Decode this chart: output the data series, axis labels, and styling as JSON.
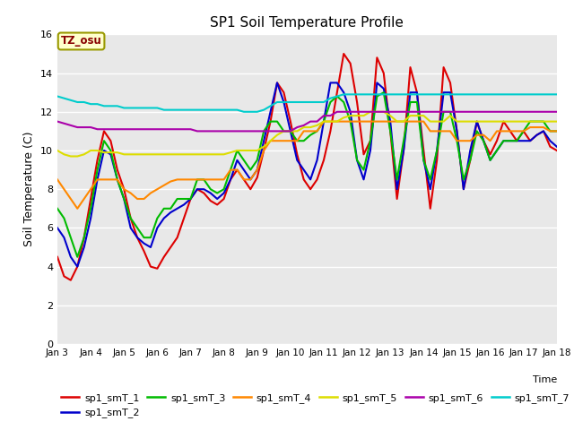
{
  "title": "SP1 Soil Temperature Profile",
  "xlabel": "Time",
  "ylabel": "Soil Temperature (C)",
  "ylim": [
    0,
    16
  ],
  "yticks": [
    0,
    2,
    4,
    6,
    8,
    10,
    12,
    14,
    16
  ],
  "annotation": "TZ_osu",
  "annotation_color": "#880000",
  "annotation_bg": "#ffffcc",
  "annotation_border": "#999900",
  "plot_bg": "#e8e8e8",
  "below_plot_bg": "#ffffff",
  "series": {
    "sp1_smT_1": {
      "color": "#dd0000",
      "lw": 1.5,
      "x": [
        3,
        3.2,
        3.4,
        3.6,
        3.8,
        4.0,
        4.2,
        4.4,
        4.6,
        4.8,
        5.0,
        5.2,
        5.4,
        5.6,
        5.8,
        6.0,
        6.2,
        6.4,
        6.6,
        6.8,
        7.0,
        7.2,
        7.4,
        7.6,
        7.8,
        8.0,
        8.2,
        8.4,
        8.6,
        8.8,
        9.0,
        9.2,
        9.4,
        9.6,
        9.8,
        10.0,
        10.2,
        10.4,
        10.6,
        10.8,
        11.0,
        11.2,
        11.4,
        11.6,
        11.8,
        12.0,
        12.2,
        12.4,
        12.6,
        12.8,
        13.0,
        13.2,
        13.4,
        13.6,
        13.8,
        14.0,
        14.2,
        14.4,
        14.6,
        14.8,
        15.0,
        15.2,
        15.4,
        15.6,
        15.8,
        16.0,
        16.2,
        16.4,
        16.6,
        16.8,
        17.0,
        17.2,
        17.4,
        17.6,
        17.8,
        18.0
      ],
      "y": [
        4.5,
        3.5,
        3.3,
        4.0,
        5.5,
        7.5,
        9.5,
        11.0,
        10.5,
        9.0,
        8.0,
        6.5,
        5.5,
        4.8,
        4.0,
        3.9,
        4.5,
        5.0,
        5.5,
        6.5,
        7.5,
        8.0,
        7.8,
        7.4,
        7.2,
        7.5,
        8.5,
        9.0,
        8.5,
        8.0,
        8.6,
        10.0,
        11.5,
        13.5,
        13.0,
        11.5,
        9.8,
        8.5,
        8.0,
        8.5,
        9.5,
        11.0,
        13.0,
        15.0,
        14.5,
        12.5,
        9.8,
        10.5,
        14.8,
        14.0,
        11.0,
        7.5,
        10.0,
        14.3,
        13.0,
        10.0,
        7.0,
        9.5,
        14.3,
        13.5,
        11.0,
        8.0,
        9.5,
        11.5,
        10.5,
        9.8,
        10.5,
        11.5,
        11.0,
        10.5,
        11.0,
        10.5,
        10.8,
        11.0,
        10.2,
        10.0
      ]
    },
    "sp1_smT_2": {
      "color": "#0000cc",
      "lw": 1.5,
      "x": [
        3,
        3.2,
        3.4,
        3.6,
        3.8,
        4.0,
        4.2,
        4.4,
        4.6,
        4.8,
        5.0,
        5.2,
        5.4,
        5.6,
        5.8,
        6.0,
        6.2,
        6.4,
        6.6,
        6.8,
        7.0,
        7.2,
        7.4,
        7.6,
        7.8,
        8.0,
        8.2,
        8.4,
        8.6,
        8.8,
        9.0,
        9.2,
        9.4,
        9.6,
        9.8,
        10.0,
        10.2,
        10.4,
        10.6,
        10.8,
        11.0,
        11.2,
        11.4,
        11.6,
        11.8,
        12.0,
        12.2,
        12.4,
        12.6,
        12.8,
        13.0,
        13.2,
        13.4,
        13.6,
        13.8,
        14.0,
        14.2,
        14.4,
        14.6,
        14.8,
        15.0,
        15.2,
        15.4,
        15.6,
        15.8,
        16.0,
        16.2,
        16.4,
        16.6,
        16.8,
        17.0,
        17.2,
        17.4,
        17.6,
        17.8,
        18.0
      ],
      "y": [
        6.0,
        5.5,
        4.5,
        4.0,
        5.0,
        6.5,
        8.5,
        10.0,
        9.8,
        8.5,
        7.5,
        6.0,
        5.5,
        5.2,
        5.0,
        6.0,
        6.5,
        6.8,
        7.0,
        7.2,
        7.5,
        8.0,
        8.0,
        7.8,
        7.5,
        7.8,
        8.5,
        9.5,
        9.0,
        8.5,
        9.0,
        10.5,
        12.0,
        13.5,
        12.5,
        11.0,
        9.5,
        9.0,
        8.5,
        9.5,
        11.5,
        13.5,
        13.5,
        13.0,
        12.0,
        9.5,
        8.5,
        10.0,
        13.5,
        13.2,
        11.5,
        8.0,
        10.0,
        13.0,
        13.0,
        9.5,
        8.0,
        10.0,
        13.0,
        13.0,
        11.0,
        8.0,
        10.0,
        11.5,
        10.5,
        9.5,
        10.0,
        10.5,
        10.5,
        10.5,
        10.5,
        10.5,
        10.8,
        11.0,
        10.5,
        10.2
      ]
    },
    "sp1_smT_3": {
      "color": "#00bb00",
      "lw": 1.5,
      "x": [
        3,
        3.2,
        3.4,
        3.6,
        3.8,
        4.0,
        4.2,
        4.4,
        4.6,
        4.8,
        5.0,
        5.2,
        5.4,
        5.6,
        5.8,
        6.0,
        6.2,
        6.4,
        6.6,
        6.8,
        7.0,
        7.2,
        7.4,
        7.6,
        7.8,
        8.0,
        8.2,
        8.4,
        8.6,
        8.8,
        9.0,
        9.2,
        9.4,
        9.6,
        9.8,
        10.0,
        10.2,
        10.4,
        10.6,
        10.8,
        11.0,
        11.2,
        11.4,
        11.6,
        11.8,
        12.0,
        12.2,
        12.4,
        12.6,
        12.8,
        13.0,
        13.2,
        13.4,
        13.6,
        13.8,
        14.0,
        14.2,
        14.4,
        14.6,
        14.8,
        15.0,
        15.2,
        15.4,
        15.6,
        15.8,
        16.0,
        16.2,
        16.4,
        16.6,
        16.8,
        17.0,
        17.2,
        17.4,
        17.6,
        17.8,
        18.0
      ],
      "y": [
        7.0,
        6.5,
        5.5,
        4.5,
        5.5,
        7.0,
        9.0,
        10.5,
        10.0,
        8.5,
        7.5,
        6.5,
        6.0,
        5.5,
        5.5,
        6.5,
        7.0,
        7.0,
        7.5,
        7.5,
        7.5,
        8.5,
        8.5,
        8.0,
        7.8,
        8.0,
        9.0,
        10.0,
        9.5,
        9.0,
        9.5,
        11.0,
        11.5,
        11.5,
        11.0,
        11.0,
        10.5,
        10.5,
        10.8,
        11.0,
        11.5,
        12.5,
        12.8,
        12.5,
        11.5,
        9.5,
        9.0,
        10.5,
        12.8,
        13.0,
        11.0,
        8.5,
        10.5,
        12.5,
        12.5,
        9.5,
        8.5,
        10.0,
        12.0,
        12.0,
        10.5,
        8.5,
        9.5,
        11.0,
        10.5,
        9.5,
        10.0,
        10.5,
        10.5,
        10.5,
        11.0,
        11.5,
        11.5,
        11.5,
        11.0,
        11.0
      ]
    },
    "sp1_smT_4": {
      "color": "#ff8800",
      "lw": 1.5,
      "x": [
        3,
        3.2,
        3.4,
        3.6,
        3.8,
        4.0,
        4.2,
        4.4,
        4.6,
        4.8,
        5.0,
        5.2,
        5.4,
        5.6,
        5.8,
        6.0,
        6.2,
        6.4,
        6.6,
        6.8,
        7.0,
        7.2,
        7.4,
        7.6,
        7.8,
        8.0,
        8.2,
        8.4,
        8.6,
        8.8,
        9.0,
        9.2,
        9.4,
        9.6,
        9.8,
        10.0,
        10.2,
        10.4,
        10.6,
        10.8,
        11.0,
        11.2,
        11.4,
        11.6,
        11.8,
        12.0,
        12.2,
        12.4,
        12.6,
        12.8,
        13.0,
        13.2,
        13.4,
        13.6,
        13.8,
        14.0,
        14.2,
        14.4,
        14.6,
        14.8,
        15.0,
        15.2,
        15.4,
        15.6,
        15.8,
        16.0,
        16.2,
        16.4,
        16.6,
        16.8,
        17.0,
        17.2,
        17.4,
        17.6,
        17.8,
        18.0
      ],
      "y": [
        8.5,
        8.0,
        7.5,
        7.0,
        7.5,
        8.0,
        8.5,
        8.5,
        8.5,
        8.5,
        8.0,
        7.8,
        7.5,
        7.5,
        7.8,
        8.0,
        8.2,
        8.4,
        8.5,
        8.5,
        8.5,
        8.5,
        8.5,
        8.5,
        8.5,
        8.5,
        9.0,
        9.0,
        8.5,
        8.5,
        9.0,
        10.0,
        10.5,
        10.5,
        10.5,
        10.5,
        10.5,
        11.0,
        11.0,
        11.0,
        11.5,
        11.5,
        11.5,
        11.5,
        11.5,
        11.5,
        11.5,
        11.5,
        11.5,
        11.5,
        11.5,
        11.5,
        11.5,
        11.5,
        11.5,
        11.5,
        11.0,
        11.0,
        11.0,
        11.0,
        10.5,
        10.5,
        10.5,
        10.8,
        10.8,
        10.5,
        11.0,
        11.0,
        11.0,
        11.0,
        11.0,
        11.2,
        11.2,
        11.2,
        11.0,
        11.0
      ]
    },
    "sp1_smT_5": {
      "color": "#dddd00",
      "lw": 1.5,
      "x": [
        3,
        3.2,
        3.4,
        3.6,
        3.8,
        4.0,
        4.2,
        4.4,
        4.6,
        4.8,
        5.0,
        5.2,
        5.4,
        5.6,
        5.8,
        6.0,
        6.2,
        6.4,
        6.6,
        6.8,
        7.0,
        7.2,
        7.4,
        7.6,
        7.8,
        8.0,
        8.2,
        8.4,
        8.6,
        8.8,
        9.0,
        9.2,
        9.4,
        9.6,
        9.8,
        10.0,
        10.2,
        10.4,
        10.6,
        10.8,
        11.0,
        11.2,
        11.4,
        11.6,
        11.8,
        12.0,
        12.2,
        12.4,
        12.6,
        12.8,
        13.0,
        13.2,
        13.4,
        13.6,
        13.8,
        14.0,
        14.2,
        14.4,
        14.6,
        14.8,
        15.0,
        15.2,
        15.4,
        15.6,
        15.8,
        16.0,
        16.2,
        16.4,
        16.6,
        16.8,
        17.0,
        17.2,
        17.4,
        17.6,
        17.8,
        18.0
      ],
      "y": [
        10.0,
        9.8,
        9.7,
        9.7,
        9.8,
        10.0,
        10.0,
        9.9,
        9.9,
        9.9,
        9.8,
        9.8,
        9.8,
        9.8,
        9.8,
        9.8,
        9.8,
        9.8,
        9.8,
        9.8,
        9.8,
        9.8,
        9.8,
        9.8,
        9.8,
        9.8,
        9.9,
        10.0,
        10.0,
        10.0,
        10.0,
        10.2,
        10.5,
        10.8,
        11.0,
        11.0,
        11.0,
        11.2,
        11.2,
        11.3,
        11.5,
        11.5,
        11.5,
        11.7,
        11.8,
        11.8,
        11.8,
        12.0,
        12.0,
        12.0,
        11.8,
        11.5,
        11.5,
        11.8,
        11.8,
        11.8,
        11.5,
        11.5,
        11.5,
        11.8,
        11.5,
        11.5,
        11.5,
        11.5,
        11.5,
        11.5,
        11.5,
        11.5,
        11.5,
        11.5,
        11.5,
        11.5,
        11.5,
        11.5,
        11.5,
        11.5
      ]
    },
    "sp1_smT_6": {
      "color": "#aa00aa",
      "lw": 1.5,
      "x": [
        3,
        3.2,
        3.4,
        3.6,
        3.8,
        4.0,
        4.2,
        4.4,
        4.6,
        4.8,
        5.0,
        5.2,
        5.4,
        5.6,
        5.8,
        6.0,
        6.2,
        6.4,
        6.6,
        6.8,
        7.0,
        7.2,
        7.4,
        7.6,
        7.8,
        8.0,
        8.2,
        8.4,
        8.6,
        8.8,
        9.0,
        9.2,
        9.4,
        9.6,
        9.8,
        10.0,
        10.2,
        10.4,
        10.6,
        10.8,
        11.0,
        11.2,
        11.4,
        11.6,
        11.8,
        12.0,
        12.2,
        12.4,
        12.6,
        12.8,
        13.0,
        13.2,
        13.4,
        13.6,
        13.8,
        14.0,
        14.2,
        14.4,
        14.6,
        14.8,
        15.0,
        15.2,
        15.4,
        15.6,
        15.8,
        16.0,
        16.2,
        16.4,
        16.6,
        16.8,
        17.0,
        17.2,
        17.4,
        17.6,
        17.8,
        18.0
      ],
      "y": [
        11.5,
        11.4,
        11.3,
        11.2,
        11.2,
        11.2,
        11.1,
        11.1,
        11.1,
        11.1,
        11.1,
        11.1,
        11.1,
        11.1,
        11.1,
        11.1,
        11.1,
        11.1,
        11.1,
        11.1,
        11.1,
        11.0,
        11.0,
        11.0,
        11.0,
        11.0,
        11.0,
        11.0,
        11.0,
        11.0,
        11.0,
        11.0,
        11.0,
        11.0,
        11.0,
        11.0,
        11.2,
        11.3,
        11.5,
        11.5,
        11.8,
        11.8,
        12.0,
        12.0,
        12.0,
        12.0,
        12.0,
        12.0,
        12.0,
        12.0,
        12.0,
        12.0,
        12.0,
        12.0,
        12.0,
        12.0,
        12.0,
        12.0,
        12.0,
        12.0,
        12.0,
        12.0,
        12.0,
        12.0,
        12.0,
        12.0,
        12.0,
        12.0,
        12.0,
        12.0,
        12.0,
        12.0,
        12.0,
        12.0,
        12.0,
        12.0
      ]
    },
    "sp1_smT_7": {
      "color": "#00cccc",
      "lw": 1.5,
      "x": [
        3,
        3.2,
        3.4,
        3.6,
        3.8,
        4.0,
        4.2,
        4.4,
        4.6,
        4.8,
        5.0,
        5.2,
        5.4,
        5.6,
        5.8,
        6.0,
        6.2,
        6.4,
        6.6,
        6.8,
        7.0,
        7.2,
        7.4,
        7.6,
        7.8,
        8.0,
        8.2,
        8.4,
        8.6,
        8.8,
        9.0,
        9.2,
        9.4,
        9.6,
        9.8,
        10.0,
        10.2,
        10.4,
        10.6,
        10.8,
        11.0,
        11.2,
        11.4,
        11.6,
        11.8,
        12.0,
        12.2,
        12.4,
        12.6,
        12.8,
        13.0,
        13.2,
        13.4,
        13.6,
        13.8,
        14.0,
        14.2,
        14.4,
        14.6,
        14.8,
        15.0,
        15.2,
        15.4,
        15.6,
        15.8,
        16.0,
        16.2,
        16.4,
        16.6,
        16.8,
        17.0,
        17.2,
        17.4,
        17.6,
        17.8,
        18.0
      ],
      "y": [
        12.8,
        12.7,
        12.6,
        12.5,
        12.5,
        12.4,
        12.4,
        12.3,
        12.3,
        12.3,
        12.2,
        12.2,
        12.2,
        12.2,
        12.2,
        12.2,
        12.1,
        12.1,
        12.1,
        12.1,
        12.1,
        12.1,
        12.1,
        12.1,
        12.1,
        12.1,
        12.1,
        12.1,
        12.0,
        12.0,
        12.0,
        12.1,
        12.3,
        12.5,
        12.5,
        12.5,
        12.5,
        12.5,
        12.5,
        12.5,
        12.5,
        12.7,
        12.8,
        12.9,
        12.9,
        12.9,
        12.9,
        12.9,
        12.9,
        12.9,
        12.9,
        12.9,
        12.9,
        12.9,
        12.9,
        12.9,
        12.9,
        12.9,
        12.9,
        12.9,
        12.9,
        12.9,
        12.9,
        12.9,
        12.9,
        12.9,
        12.9,
        12.9,
        12.9,
        12.9,
        12.9,
        12.9,
        12.9,
        12.9,
        12.9,
        12.9
      ]
    }
  },
  "xtick_positions": [
    3,
    4,
    5,
    6,
    7,
    8,
    9,
    10,
    11,
    12,
    13,
    14,
    15,
    16,
    17,
    18
  ],
  "xtick_labels": [
    "Jan 3",
    "Jan 4",
    "Jan 5",
    "Jan 6",
    "Jan 7",
    "Jan 8",
    "Jan 9",
    "Jan 10",
    "Jan 11",
    "Jan 12",
    "Jan 13",
    "Jan 14",
    "Jan 15",
    "Jan 16",
    "Jan 17",
    "Jan 18"
  ],
  "legend_order": [
    "sp1_smT_1",
    "sp1_smT_2",
    "sp1_smT_3",
    "sp1_smT_4",
    "sp1_smT_5",
    "sp1_smT_6",
    "sp1_smT_7"
  ],
  "legend_colors": {
    "sp1_smT_1": "#dd0000",
    "sp1_smT_2": "#0000cc",
    "sp1_smT_3": "#00bb00",
    "sp1_smT_4": "#ff8800",
    "sp1_smT_5": "#dddd00",
    "sp1_smT_6": "#aa00aa",
    "sp1_smT_7": "#00cccc"
  }
}
